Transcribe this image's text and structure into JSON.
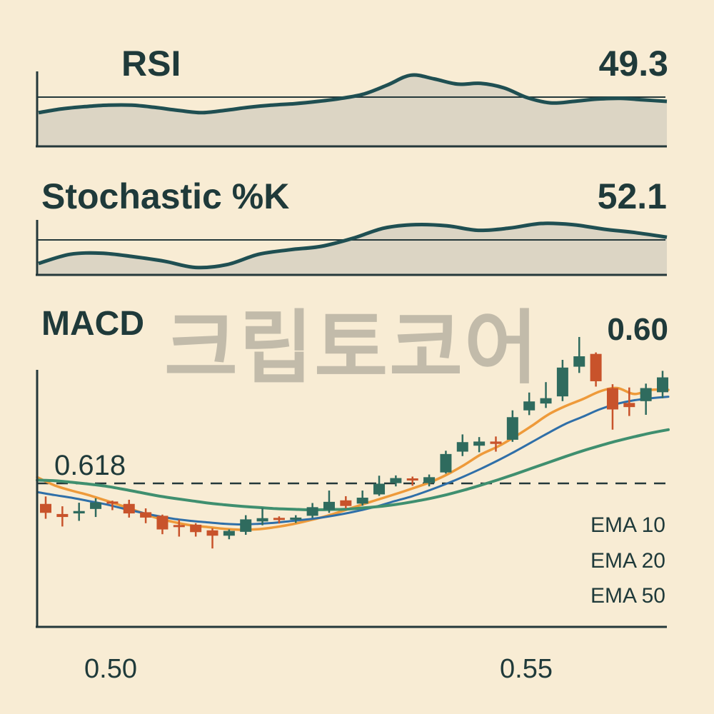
{
  "panels": {
    "rsi": {
      "title": "RSI",
      "value": "49.3"
    },
    "stochastic": {
      "title": "Stochastic %K",
      "value": "52.1"
    },
    "macd": {
      "title": "MACD",
      "value": "0.60"
    }
  },
  "watermark": "크립토코어",
  "chart_data": [
    {
      "type": "area",
      "title": "RSI",
      "value_label": "49.3",
      "grid": false,
      "series": [
        {
          "values": [
            45,
            50,
            53,
            55,
            55,
            52,
            48,
            45,
            48,
            52,
            55,
            57,
            60,
            64,
            70,
            82,
            95,
            90,
            83,
            84,
            78,
            65,
            58,
            60,
            63,
            64,
            62,
            60
          ]
        }
      ],
      "threshold": 70
    },
    {
      "type": "area",
      "title": "Stochastic %K",
      "value_label": "52.1",
      "grid": false,
      "series": [
        {
          "values": [
            20,
            36,
            38,
            32,
            24,
            13,
            18,
            36,
            44,
            50,
            64,
            82,
            88,
            86,
            78,
            82,
            90,
            88,
            80,
            74,
            66
          ]
        }
      ],
      "threshold": 50
    },
    {
      "type": "candlestick",
      "title": "MACD",
      "value_label": "0.60",
      "xlim": [
        0.495,
        0.568
      ],
      "x_ticks": [
        "0.50",
        "0.55"
      ],
      "fib_level": {
        "label": "0.618",
        "style": "dashed"
      },
      "colors": {
        "up": "#2f6b5e",
        "down": "#c8532b",
        "ema10": "#ee9a3a",
        "ema20": "#2f6fa8",
        "ema50": "#3f8f6f",
        "axis": "#24383a"
      },
      "candles": [
        {
          "o": 39.0,
          "c": 36.0,
          "h": 41.5,
          "l": 34.0
        },
        {
          "o": 35.6,
          "c": 34.6,
          "h": 38.2,
          "l": 31.4
        },
        {
          "o": 35.8,
          "c": 36.6,
          "h": 39.4,
          "l": 33.3
        },
        {
          "o": 37.3,
          "c": 39.5,
          "h": 40.9,
          "l": 34.6
        },
        {
          "o": 39.8,
          "c": 39.2,
          "h": 40.1,
          "l": 36.9
        },
        {
          "o": 39.0,
          "c": 35.8,
          "h": 40.4,
          "l": 34.4
        },
        {
          "o": 36.2,
          "c": 34.4,
          "h": 37.5,
          "l": 32.5
        },
        {
          "o": 35.0,
          "c": 30.4,
          "h": 35.4,
          "l": 28.8
        },
        {
          "o": 31.9,
          "c": 31.2,
          "h": 33.7,
          "l": 28.0
        },
        {
          "o": 32.0,
          "c": 29.5,
          "h": 32.5,
          "l": 28.0
        },
        {
          "o": 30.1,
          "c": 28.3,
          "h": 30.8,
          "l": 24.0
        },
        {
          "o": 28.3,
          "c": 29.9,
          "h": 30.4,
          "l": 27.1
        },
        {
          "o": 29.6,
          "c": 33.8,
          "h": 35.2,
          "l": 28.6
        },
        {
          "o": 33.1,
          "c": 34.2,
          "h": 37.6,
          "l": 31.8
        },
        {
          "o": 34.3,
          "c": 33.9,
          "h": 34.8,
          "l": 32.4
        },
        {
          "o": 34.0,
          "c": 34.4,
          "h": 35.2,
          "l": 32.6
        },
        {
          "o": 35.0,
          "c": 37.9,
          "h": 39.3,
          "l": 34.3
        },
        {
          "o": 37.0,
          "c": 39.7,
          "h": 43.5,
          "l": 36.0
        },
        {
          "o": 40.2,
          "c": 38.3,
          "h": 41.6,
          "l": 37.5
        },
        {
          "o": 39.1,
          "c": 41.1,
          "h": 43.5,
          "l": 38.4
        },
        {
          "o": 42.2,
          "c": 45.8,
          "h": 48.5,
          "l": 41.7
        },
        {
          "o": 46.0,
          "c": 47.7,
          "h": 48.6,
          "l": 44.9
        },
        {
          "o": 47.6,
          "c": 46.9,
          "h": 48.2,
          "l": 45.1
        },
        {
          "o": 46.0,
          "c": 48.0,
          "h": 48.9,
          "l": 44.9
        },
        {
          "o": 49.6,
          "c": 55.8,
          "h": 56.9,
          "l": 49.2
        },
        {
          "o": 56.6,
          "c": 59.8,
          "h": 62.4,
          "l": 55.1
        },
        {
          "o": 58.6,
          "c": 60.0,
          "h": 61.5,
          "l": 56.4
        },
        {
          "o": 60.0,
          "c": 59.2,
          "h": 61.7,
          "l": 56.6
        },
        {
          "o": 60.6,
          "c": 68.2,
          "h": 70.5,
          "l": 59.9
        },
        {
          "o": 70.5,
          "c": 73.5,
          "h": 76.5,
          "l": 68.9
        },
        {
          "o": 72.8,
          "c": 74.6,
          "h": 80.0,
          "l": 71.3
        },
        {
          "o": 75.2,
          "c": 84.9,
          "h": 87.5,
          "l": 73.6
        },
        {
          "o": 85.2,
          "c": 88.7,
          "h": 95.2,
          "l": 83.1
        },
        {
          "o": 89.5,
          "c": 80.3,
          "h": 90.0,
          "l": 78.5
        },
        {
          "o": 78.0,
          "c": 70.8,
          "h": 79.3,
          "l": 64.0
        },
        {
          "o": 73.0,
          "c": 71.6,
          "h": 78.2,
          "l": 68.6
        },
        {
          "o": 73.6,
          "c": 78.0,
          "h": 79.5,
          "l": 69.0
        },
        {
          "o": 76.6,
          "c": 81.6,
          "h": 83.8,
          "l": 74.6
        }
      ],
      "series": [
        {
          "name": "EMA 10",
          "values": [
            48.0,
            45.3,
            43.5,
            42.0,
            40.2,
            38.3,
            36.3,
            34.3,
            32.9,
            31.8,
            31.2,
            30.6,
            30.3,
            30.5,
            31.2,
            32.2,
            33.5,
            35.0,
            36.8,
            38.7,
            40.5,
            42.3,
            44.2,
            46.2,
            48.8,
            52.0,
            55.6,
            58.3,
            61.6,
            65.3,
            69.2,
            72.0,
            74.3,
            76.9,
            78.0,
            76.0,
            77.4,
            77.4
          ]
        },
        {
          "name": "EMA 20",
          "values": [
            43.0,
            42.0,
            41.1,
            40.0,
            38.9,
            37.5,
            36.2,
            35.0,
            34.0,
            33.3,
            32.8,
            32.3,
            32.1,
            32.3,
            32.7,
            33.3,
            33.9,
            34.7,
            35.7,
            36.9,
            38.3,
            40.0,
            41.6,
            43.6,
            45.8,
            48.2,
            50.8,
            53.6,
            56.6,
            59.8,
            63.0,
            66.0,
            68.4,
            70.9,
            72.7,
            73.9,
            74.6,
            75.1
          ]
        },
        {
          "name": "EMA 50",
          "values": [
            47.0,
            46.8,
            46.3,
            45.7,
            45.0,
            44.0,
            42.9,
            41.8,
            40.9,
            40.1,
            39.3,
            38.7,
            38.2,
            37.8,
            37.4,
            37.2,
            37.0,
            37.1,
            37.2,
            37.6,
            38.1,
            38.8,
            39.7,
            40.8,
            42.1,
            43.6,
            45.3,
            47.1,
            49.0,
            51.0,
            53.0,
            55.0,
            56.9,
            58.6,
            60.2,
            61.6,
            62.9,
            64.0
          ]
        }
      ]
    }
  ]
}
